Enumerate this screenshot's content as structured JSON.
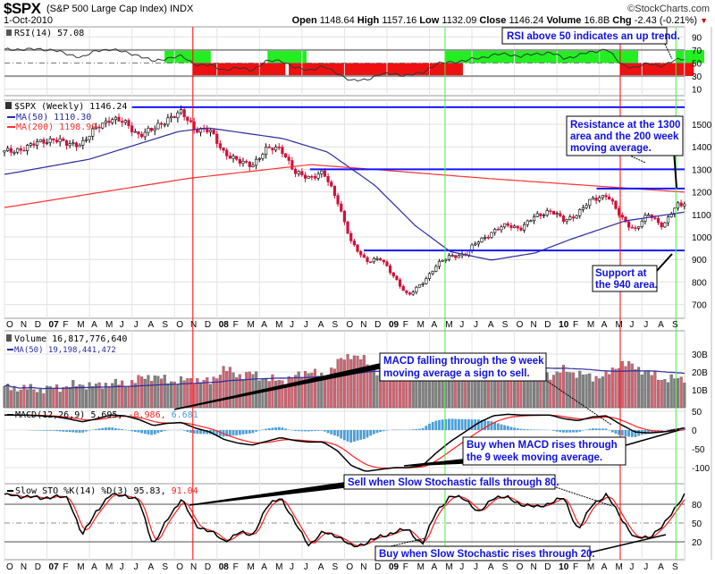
{
  "header": {
    "symbol": "$SPX",
    "name": "(S&P 500 Large Cap Index) INDX",
    "copyright": "©StockCharts.com",
    "date": "1-Oct-2010",
    "open_label": "Open",
    "open": "1148.64",
    "high_label": "High",
    "high": "1157.16",
    "low_label": "Low",
    "low": "1132.09",
    "close_label": "Close",
    "close": "1146.24",
    "volume_label": "Volume",
    "volume": "16.8B",
    "chg_label": "Chg",
    "chg": "-2.43 (-0.21%)",
    "chg_icon": "triangle-down-icon"
  },
  "colors": {
    "up_zone": "#22ee22",
    "down_zone": "#ee1111",
    "level_line": "#1414ff",
    "ma50": "#2a2aa0",
    "ma200": "#ff3030",
    "sell_line": "#ff0000",
    "buy_line": "#44ee44",
    "candle_down": "#d0103a",
    "macd_hist": "#4a9ed8",
    "callout_text": "#1010e0"
  },
  "chart_data": {
    "type": "candlestick",
    "period": "Weekly",
    "months": [
      "2006-10",
      "2006-11",
      "2006-12",
      "2007-01",
      "2007-02",
      "2007-03",
      "2007-04",
      "2007-05",
      "2007-06",
      "2007-07",
      "2007-08",
      "2007-09",
      "2007-10",
      "2007-11",
      "2007-12",
      "2008-01",
      "2008-02",
      "2008-03",
      "2008-04",
      "2008-05",
      "2008-06",
      "2008-07",
      "2008-08",
      "2008-09",
      "2008-10",
      "2008-11",
      "2008-12",
      "2009-01",
      "2009-02",
      "2009-03",
      "2009-04",
      "2009-05",
      "2009-06",
      "2009-07",
      "2009-08",
      "2009-09",
      "2009-10",
      "2009-11",
      "2009-12",
      "2010-01",
      "2010-02",
      "2010-03",
      "2010-04",
      "2010-05",
      "2010-06",
      "2010-07",
      "2010-08",
      "2010-09",
      "2010-10"
    ],
    "x_tick_labels": [
      "O",
      "N",
      "D",
      "07",
      "F",
      "M",
      "A",
      "M",
      "J",
      "J",
      "A",
      "S",
      "O",
      "N",
      "D",
      "08",
      "F",
      "M",
      "A",
      "M",
      "J",
      "J",
      "A",
      "S",
      "O",
      "N",
      "D",
      "09",
      "F",
      "M",
      "A",
      "M",
      "J",
      "J",
      "A",
      "S",
      "O",
      "N",
      "D",
      "10",
      "F",
      "M",
      "A",
      "M",
      "J",
      "J",
      "A",
      "S"
    ],
    "signal_lines": [
      {
        "date": "2007-11-10",
        "type": "sell"
      },
      {
        "date": "2009-05-04",
        "type": "buy"
      },
      {
        "date": "2010-05-15",
        "type": "sell"
      },
      {
        "date": "2010-09-13",
        "type": "buy"
      }
    ],
    "rsi": {
      "legend": "RSI(14) 57.08",
      "ylim": [
        0,
        100
      ],
      "ticks": [
        "90",
        "70",
        "50",
        "30",
        "10"
      ],
      "tick_values": [
        90,
        70,
        50,
        30,
        10
      ],
      "values": [
        70,
        72,
        70,
        71,
        62,
        60,
        68,
        72,
        66,
        62,
        52,
        58,
        60,
        48,
        46,
        40,
        42,
        40,
        52,
        55,
        42,
        40,
        44,
        35,
        22,
        25,
        32,
        34,
        30,
        36,
        48,
        52,
        53,
        58,
        62,
        64,
        60,
        64,
        66,
        57,
        62,
        67,
        72,
        48,
        43,
        49,
        46,
        55,
        57.08
      ],
      "zones": [
        {
          "from": "2007-09-10",
          "to": "2007-11-10",
          "trend": "up"
        },
        {
          "from": "2007-11-10",
          "to": "2008-04-18",
          "trend": "down"
        },
        {
          "from": "2008-04-18",
          "to": "2008-06-03",
          "trend": "up"
        },
        {
          "from": "2008-06-03",
          "to": "2009-05-04",
          "trend": "down"
        },
        {
          "from": "2009-05-04",
          "to": "2010-05-15",
          "trend": "up"
        },
        {
          "from": "2010-05-15",
          "to": "2010-09-13",
          "trend": "down"
        },
        {
          "from": "2010-09-13",
          "to": "2010-10-31",
          "trend": "up"
        }
      ]
    },
    "price": {
      "legend": "$SPX (Weekly) 1146.24",
      "ma50_legend": "MA(50) 1110.30",
      "ma200_legend": "MA(200) 1198.99",
      "ylim": [
        660,
        1600
      ],
      "ticks": [
        "1500",
        "1400",
        "1300",
        "1200",
        "1100",
        "1000",
        "900",
        "800",
        "700"
      ],
      "tick_values": [
        1500,
        1400,
        1300,
        1200,
        1100,
        1000,
        900,
        800,
        700
      ],
      "monthly_close": [
        1377,
        1400,
        1418,
        1438,
        1406,
        1420,
        1482,
        1530,
        1503,
        1455,
        1474,
        1527,
        1549,
        1481,
        1468,
        1378,
        1331,
        1323,
        1386,
        1400,
        1280,
        1267,
        1283,
        1166,
        969,
        896,
        903,
        826,
        735,
        798,
        873,
        919,
        919,
        987,
        1021,
        1057,
        1036,
        1096,
        1115,
        1074,
        1104,
        1169,
        1187,
        1089,
        1031,
        1102,
        1049,
        1141,
        1146.24
      ],
      "ma50": [
        {
          "date": "2006-10-03",
          "value": 1278
        },
        {
          "date": "2007-04-01",
          "value": 1345
        },
        {
          "date": "2007-10-10",
          "value": 1468
        },
        {
          "date": "2007-12-12",
          "value": 1484
        },
        {
          "date": "2008-05-20",
          "value": 1437
        },
        {
          "date": "2008-08-25",
          "value": 1377
        },
        {
          "date": "2008-12-05",
          "value": 1230
        },
        {
          "date": "2009-03-01",
          "value": 1050
        },
        {
          "date": "2009-05-15",
          "value": 935
        },
        {
          "date": "2009-08-12",
          "value": 897
        },
        {
          "date": "2009-11-15",
          "value": 929
        },
        {
          "date": "2010-02-01",
          "value": 990
        },
        {
          "date": "2010-05-25",
          "value": 1071
        },
        {
          "date": "2010-10-01",
          "value": 1110.3
        }
      ],
      "ma200": [
        {
          "date": "2006-10-03",
          "value": 1131
        },
        {
          "date": "2007-11-01",
          "value": 1260
        },
        {
          "date": "2008-07-20",
          "value": 1321
        },
        {
          "date": "2008-12-01",
          "value": 1300
        },
        {
          "date": "2009-08-01",
          "value": 1260
        },
        {
          "date": "2010-04-01",
          "value": 1225
        },
        {
          "date": "2010-10-01",
          "value": 1198.99
        }
      ],
      "levels": [
        {
          "value": 1576,
          "from": "2007-07-01",
          "label": "resistance"
        },
        {
          "value": 1300,
          "from": "2008-07-18",
          "label": "resistance"
        },
        {
          "value": 1215,
          "from": "2010-03-25",
          "label": "resistance"
        },
        {
          "value": 940,
          "from": "2008-11-12",
          "label": "support"
        }
      ]
    },
    "volume": {
      "legend": "Volume 16,817,776,640",
      "ma_legend": "MA(50) 19,198,441,472",
      "unit": "B",
      "ticks": [
        "30B",
        "20B",
        "10B"
      ],
      "tick_values": [
        30,
        20,
        10
      ],
      "monthly_avg_billions": [
        11,
        11,
        10,
        11,
        12,
        13,
        12,
        14,
        13,
        16,
        18,
        15,
        15,
        16,
        14,
        22,
        18,
        19,
        16,
        15,
        17,
        21,
        17,
        25,
        30,
        26,
        19,
        21,
        23,
        24,
        25,
        24,
        22,
        20,
        23,
        23,
        22,
        19,
        18,
        21,
        19,
        17,
        18,
        25,
        23,
        19,
        16,
        16,
        16.8
      ]
    },
    "macd": {
      "legend_name": "MACD(12,26,9)",
      "legend_macd": "5.695,",
      "legend_signal": "-0.986,",
      "legend_hist": "6.681",
      "ticks": [
        "50",
        "0",
        "-50",
        "-100"
      ],
      "tick_values": [
        50,
        0,
        -50,
        -100
      ],
      "values": [
        40,
        40,
        38,
        36,
        30,
        22,
        30,
        40,
        38,
        28,
        12,
        18,
        20,
        5,
        -5,
        -25,
        -35,
        -40,
        -30,
        -20,
        -28,
        -32,
        -32,
        -55,
        -95,
        -110,
        -105,
        -100,
        -100,
        -95,
        -60,
        -30,
        -5,
        20,
        38,
        42,
        40,
        40,
        40,
        30,
        25,
        35,
        38,
        15,
        -5,
        -8,
        -5,
        2,
        5.7
      ]
    },
    "stochastic": {
      "legend_name": "Slow STO %K(14) %D(3)",
      "legend_k": "95.83,",
      "legend_d": "91.04",
      "ticks": [
        "80",
        "50",
        "20"
      ],
      "tick_values": [
        80,
        50,
        20
      ],
      "k_values": [
        95,
        92,
        90,
        92,
        90,
        30,
        70,
        95,
        95,
        85,
        15,
        55,
        90,
        45,
        38,
        20,
        35,
        30,
        75,
        92,
        50,
        15,
        35,
        30,
        12,
        18,
        28,
        35,
        40,
        15,
        70,
        92,
        90,
        65,
        92,
        90,
        80,
        75,
        82,
        90,
        38,
        80,
        95,
        60,
        25,
        28,
        45,
        80,
        95.83
      ]
    }
  },
  "callouts": {
    "rsi": {
      "lines": [
        "RSI above 50 indicates an up trend."
      ]
    },
    "resistance": {
      "lines": [
        "Resistance at the 1300",
        "area and the 200 week",
        "moving average."
      ]
    },
    "support": {
      "lines": [
        "Support at",
        "the 940 area."
      ]
    },
    "macd_sell": {
      "lines": [
        "MACD falling through the 9 week",
        "moving average a sign to sell."
      ]
    },
    "macd_buy": {
      "lines": [
        "Buy when MACD rises through",
        "the 9 week moving average."
      ]
    },
    "sto_sell": {
      "lines": [
        "Sell when Slow Stochastic falls through 80."
      ]
    },
    "sto_buy": {
      "lines": [
        "Buy when Slow Stochastic rises through 20."
      ]
    }
  }
}
